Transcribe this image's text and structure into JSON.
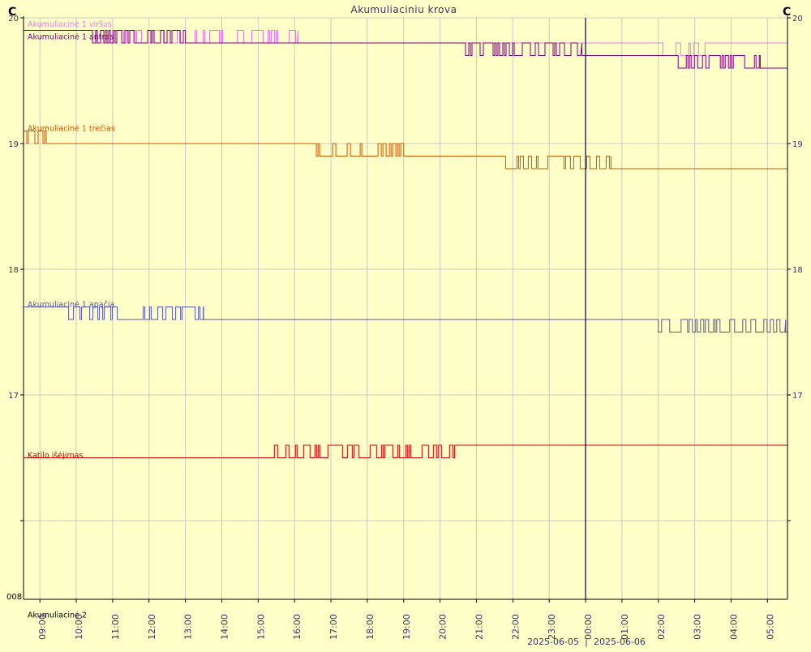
{
  "chart_data": {
    "type": "line",
    "title": "Akumuliaciniu krova",
    "y_unit_left": "C",
    "y_unit_right": "C",
    "ylim": [
      16,
      20
    ],
    "y_tick_labels": [
      {
        "value": 20,
        "label": "20"
      },
      {
        "value": 19,
        "label": "19"
      },
      {
        "value": 18,
        "label": "18"
      },
      {
        "value": 17,
        "label": "17"
      },
      {
        "value": 16,
        "label": ""
      }
    ],
    "y_bottom_label": "008",
    "x_ticks": [
      "09:00",
      "10:00",
      "11:00",
      "12:00",
      "13:00",
      "14:00",
      "15:00",
      "16:00",
      "17:00",
      "18:00",
      "19:00",
      "20:00",
      "21:00",
      "22:00",
      "23:00",
      "00:00",
      "01:00",
      "02:00",
      "03:00",
      "04:00",
      "05:00"
    ],
    "x_tick_hours": [
      9,
      10,
      11,
      12,
      13,
      14,
      15,
      16,
      17,
      18,
      19,
      20,
      21,
      22,
      23,
      24,
      25,
      26,
      27,
      28,
      29
    ],
    "x_range_hours": [
      8.55,
      29.55
    ],
    "day_boundary_hour": 24,
    "date_left": "2025-06-05",
    "date_right": "2025-06-06",
    "grid": true,
    "series": [
      {
        "name": "Akumuliacinė 1 viršus",
        "color": "#e080e0",
        "label_value": 19.95,
        "segments": [
          {
            "x0": 8.55,
            "x1": 10.5,
            "y": 19.9
          },
          {
            "x0": 10.5,
            "x1": 16.1,
            "y": 19.9,
            "osc_to": 19.8,
            "density": 0.6
          },
          {
            "x0": 16.1,
            "x1": 24.0,
            "y": 19.8
          },
          {
            "x0": 24.0,
            "x1": 29.55,
            "y": 19.8,
            "osc_from": 25.5,
            "osc_until": 27.4,
            "osc_to": 19.7
          }
        ]
      },
      {
        "name": "Akumuliacinė 1 antras",
        "color": "#800080",
        "label_value": 19.85,
        "segments": [
          {
            "x0": 8.55,
            "x1": 10.4,
            "y": 19.9
          },
          {
            "x0": 10.4,
            "x1": 13.0,
            "y": 19.9,
            "osc_to": 19.8,
            "density": 0.9
          },
          {
            "x0": 13.0,
            "x1": 20.7,
            "y": 19.8
          },
          {
            "x0": 20.7,
            "x1": 23.9,
            "y": 19.8,
            "osc_to": 19.7,
            "density": 0.85
          },
          {
            "x0": 23.9,
            "x1": 26.5,
            "y": 19.7
          },
          {
            "x0": 26.5,
            "x1": 28.8,
            "y": 19.7,
            "osc_to": 19.6,
            "density": 0.85
          },
          {
            "x0": 28.8,
            "x1": 29.55,
            "y": 19.6
          }
        ]
      },
      {
        "name": "Akumuliacinė 1 trečias",
        "color": "#cc5500",
        "label_value": 19.12,
        "segments": [
          {
            "x0": 8.55,
            "x1": 9.2,
            "y": 19.0,
            "osc_to": 19.1,
            "density": 0.8
          },
          {
            "x0": 9.2,
            "x1": 16.6,
            "y": 19.0
          },
          {
            "x0": 16.6,
            "x1": 19.0,
            "y": 19.0,
            "osc_to": 18.9,
            "density": 0.7
          },
          {
            "x0": 19.0,
            "x1": 21.8,
            "y": 18.9
          },
          {
            "x0": 21.8,
            "x1": 24.7,
            "y": 18.9,
            "osc_to": 18.8,
            "density": 0.7
          },
          {
            "x0": 24.7,
            "x1": 29.55,
            "y": 18.8
          }
        ]
      },
      {
        "name": "Akumuliacinė 1 apačia",
        "color": "#5555aa",
        "label_value": 17.72,
        "segments": [
          {
            "x0": 8.55,
            "x1": 9.7,
            "y": 17.7
          },
          {
            "x0": 9.7,
            "x1": 13.5,
            "y": 17.7,
            "osc_to": 17.6,
            "density": 0.7
          },
          {
            "x0": 13.5,
            "x1": 26.0,
            "y": 17.6
          },
          {
            "x0": 26.0,
            "x1": 29.5,
            "y": 17.6,
            "osc_to": 17.5,
            "density": 0.7
          },
          {
            "x0": 29.5,
            "x1": 29.55,
            "y": 17.5
          }
        ]
      },
      {
        "name": "Katilo išėjimas",
        "color": "#cc0000",
        "label_value": 16.52,
        "segments": [
          {
            "x0": 8.55,
            "x1": 15.4,
            "y": 16.5
          },
          {
            "x0": 15.4,
            "x1": 20.4,
            "y": 16.5,
            "osc_to": 16.6,
            "density": 0.75
          },
          {
            "x0": 20.4,
            "x1": 29.55,
            "y": 16.6
          }
        ]
      },
      {
        "name": "Akumuliacinė 2",
        "color": "#000000",
        "label_value": 15.25,
        "segments": []
      }
    ]
  }
}
